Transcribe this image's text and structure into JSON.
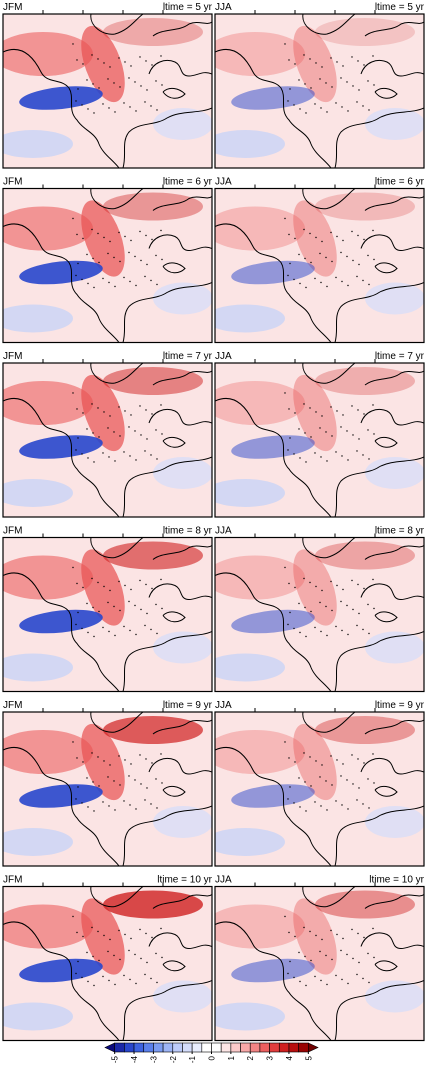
{
  "figure": {
    "rows": [
      {
        "left": "JFM",
        "right": "JJA",
        "lead": "ltime = 5 yr"
      },
      {
        "left": "JFM",
        "right": "JJA",
        "lead": "ltime = 6 yr"
      },
      {
        "left": "JFM",
        "right": "JJA",
        "lead": "ltime = 7 yr"
      },
      {
        "left": "JFM",
        "right": "JJA",
        "lead": "ltime = 8 yr"
      },
      {
        "left": "JFM",
        "right": "JJA",
        "lead": "ltime = 9 yr"
      },
      {
        "left": "JFM",
        "right": "JJA",
        "lead": "ltime = 10 yr"
      }
    ],
    "colorbar": {
      "lim": [
        -5.5,
        5.5
      ],
      "ticks": [
        -5,
        -4,
        -3,
        -2,
        -1,
        0,
        1,
        2,
        3,
        4,
        5
      ],
      "colors": [
        "#0b0b7e",
        "#1a28a8",
        "#2846cc",
        "#3c62e0",
        "#5a80ec",
        "#7b9cf2",
        "#9db5f6",
        "#bccbf9",
        "#d4ddfb",
        "#e8edfd",
        "#ffffff",
        "#ffffff",
        "#fde6e6",
        "#fbcaca",
        "#f8a8a8",
        "#f28484",
        "#ec5f5f",
        "#e23c3c",
        "#d01f1f",
        "#b80f0f",
        "#980404",
        "#700000"
      ]
    }
  }
}
